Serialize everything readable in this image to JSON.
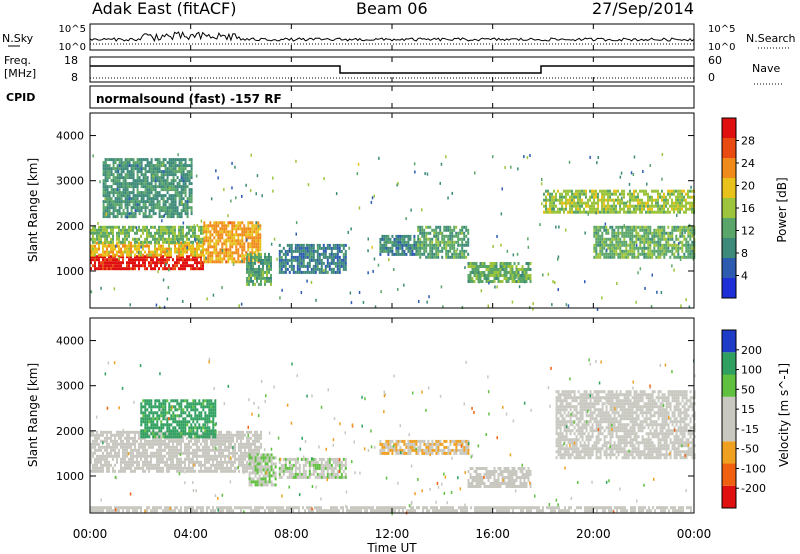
{
  "header": {
    "station": "Adak East (fitACF)",
    "beam": "Beam 06",
    "date": "27/Sep/2014"
  },
  "status_panels": {
    "nsky": {
      "label": "N.Sky",
      "ticks": [
        "10^5",
        "10^0"
      ]
    },
    "nsearch": {
      "label": "N.Search",
      "ticks": [
        "10^5",
        "10^0"
      ]
    },
    "freq": {
      "label_line1": "Freq.",
      "label_line2": "[MHz]",
      "ticks": [
        "18",
        "8"
      ]
    },
    "nave": {
      "label": "Nave",
      "ticks": [
        "60",
        "0"
      ]
    },
    "cpid": {
      "label": "CPID",
      "text": "normalsound (fast) -157 RF"
    }
  },
  "time_axis": {
    "label": "Time UT",
    "ticks": [
      "00:00",
      "04:00",
      "08:00",
      "12:00",
      "16:00",
      "20:00",
      "00:00"
    ]
  },
  "chart_data": [
    {
      "type": "heatmap",
      "parameter": "Power",
      "ylabel": "Slant Range [km]",
      "xlabel": "Time UT",
      "xlim_hours": [
        0,
        24
      ],
      "ylim": [
        180,
        4500
      ],
      "yticks": [
        "1000",
        "2000",
        "3000",
        "4000"
      ],
      "colorbar": {
        "label": "Power [dB]",
        "ticks": [
          "4",
          "8",
          "12",
          "16",
          "20",
          "24",
          "28"
        ],
        "range": [
          0,
          32
        ]
      },
      "regions": [
        {
          "t": [
            0,
            4.5
          ],
          "range": [
            1050,
            1350
          ],
          "level": 30
        },
        {
          "t": [
            0,
            4.5
          ],
          "range": [
            1350,
            1650
          ],
          "level": 20
        },
        {
          "t": [
            0,
            4.5
          ],
          "range": [
            1650,
            2000
          ],
          "level": 14
        },
        {
          "t": [
            4.5,
            6.8
          ],
          "range": [
            1200,
            2100
          ],
          "level": 22
        },
        {
          "t": [
            0.5,
            4.0
          ],
          "range": [
            2200,
            3500
          ],
          "level": 10
        },
        {
          "t": [
            6.2,
            7.2
          ],
          "range": [
            700,
            1400
          ],
          "level": 12
        },
        {
          "t": [
            7.5,
            10.2
          ],
          "range": [
            1000,
            1600
          ],
          "level": 8
        },
        {
          "t": [
            11.5,
            13.0
          ],
          "range": [
            1400,
            1800
          ],
          "level": 9
        },
        {
          "t": [
            13.0,
            15.0
          ],
          "range": [
            1300,
            2000
          ],
          "level": 12
        },
        {
          "t": [
            15.0,
            17.5
          ],
          "range": [
            800,
            1200
          ],
          "level": 13
        },
        {
          "t": [
            18.0,
            24.0
          ],
          "range": [
            2300,
            2800
          ],
          "level": 16
        },
        {
          "t": [
            20.0,
            24.0
          ],
          "range": [
            1300,
            2000
          ],
          "level": 13
        }
      ]
    },
    {
      "type": "heatmap",
      "parameter": "Velocity",
      "ylabel": "Slant Range [km]",
      "xlabel": "Time UT",
      "xlim_hours": [
        0,
        24
      ],
      "ylim": [
        180,
        4500
      ],
      "yticks": [
        "1000",
        "2000",
        "3000",
        "4000"
      ],
      "colorbar": {
        "label": "Velocity [m s^-1]",
        "ticks": [
          "200",
          "100",
          "50",
          "15",
          "-15",
          "-50",
          "-100",
          "-200"
        ],
        "range": [
          -250,
          250
        ]
      },
      "regions": [
        {
          "t": [
            0,
            6.8
          ],
          "range": [
            1100,
            2000
          ],
          "level": 0
        },
        {
          "t": [
            2.0,
            5.0
          ],
          "range": [
            1900,
            2700
          ],
          "level": 150
        },
        {
          "t": [
            6.3,
            7.4
          ],
          "range": [
            800,
            1500
          ],
          "level": 60
        },
        {
          "t": [
            7.5,
            10.2
          ],
          "range": [
            1000,
            1400
          ],
          "level": 50
        },
        {
          "t": [
            11.5,
            15.0
          ],
          "range": [
            1500,
            1800
          ],
          "level": -60
        },
        {
          "t": [
            15.0,
            17.5
          ],
          "range": [
            800,
            1200
          ],
          "level": 0
        },
        {
          "t": [
            18.5,
            24.0
          ],
          "range": [
            1400,
            2900
          ],
          "level": 0
        },
        {
          "t": [
            0,
            24.0
          ],
          "range": [
            200,
            330
          ],
          "level": 0
        }
      ]
    }
  ]
}
